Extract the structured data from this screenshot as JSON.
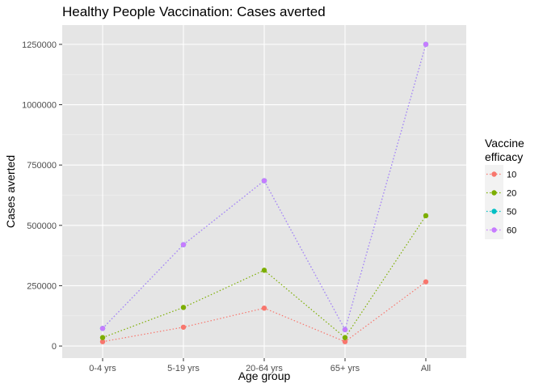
{
  "chart_data": {
    "type": "line",
    "title": "Healthy People Vaccination: Cases averted",
    "xlabel": "Age group",
    "ylabel": "Cases averted",
    "categories": [
      "0-4 yrs",
      "5-19 yrs",
      "20-64 yrs",
      "65+ yrs",
      "All"
    ],
    "ylim": [
      -50000,
      1330000
    ],
    "yticks": [
      0,
      250000,
      500000,
      750000,
      1000000,
      1250000
    ],
    "ytick_labels": [
      "0",
      "250000",
      "500000",
      "750000",
      "1000000",
      "1250000"
    ],
    "grid": true,
    "panel_background": "#e5e5e5",
    "legend": {
      "title_line1": "Vaccine",
      "title_line2": "efficacy",
      "position": "right"
    },
    "series": [
      {
        "name": "10",
        "color": "#f8766d",
        "values": [
          18000,
          78000,
          157000,
          18000,
          266000
        ]
      },
      {
        "name": "20",
        "color": "#7cae00",
        "values": [
          35000,
          160000,
          314000,
          35000,
          540000
        ]
      },
      {
        "name": "50",
        "color": "#00bfc4",
        "values": [
          73000,
          420000,
          685000,
          68000,
          1250000
        ]
      },
      {
        "name": "60",
        "color": "#c77cff",
        "values": [
          73000,
          420000,
          685000,
          68000,
          1250000
        ]
      }
    ]
  }
}
